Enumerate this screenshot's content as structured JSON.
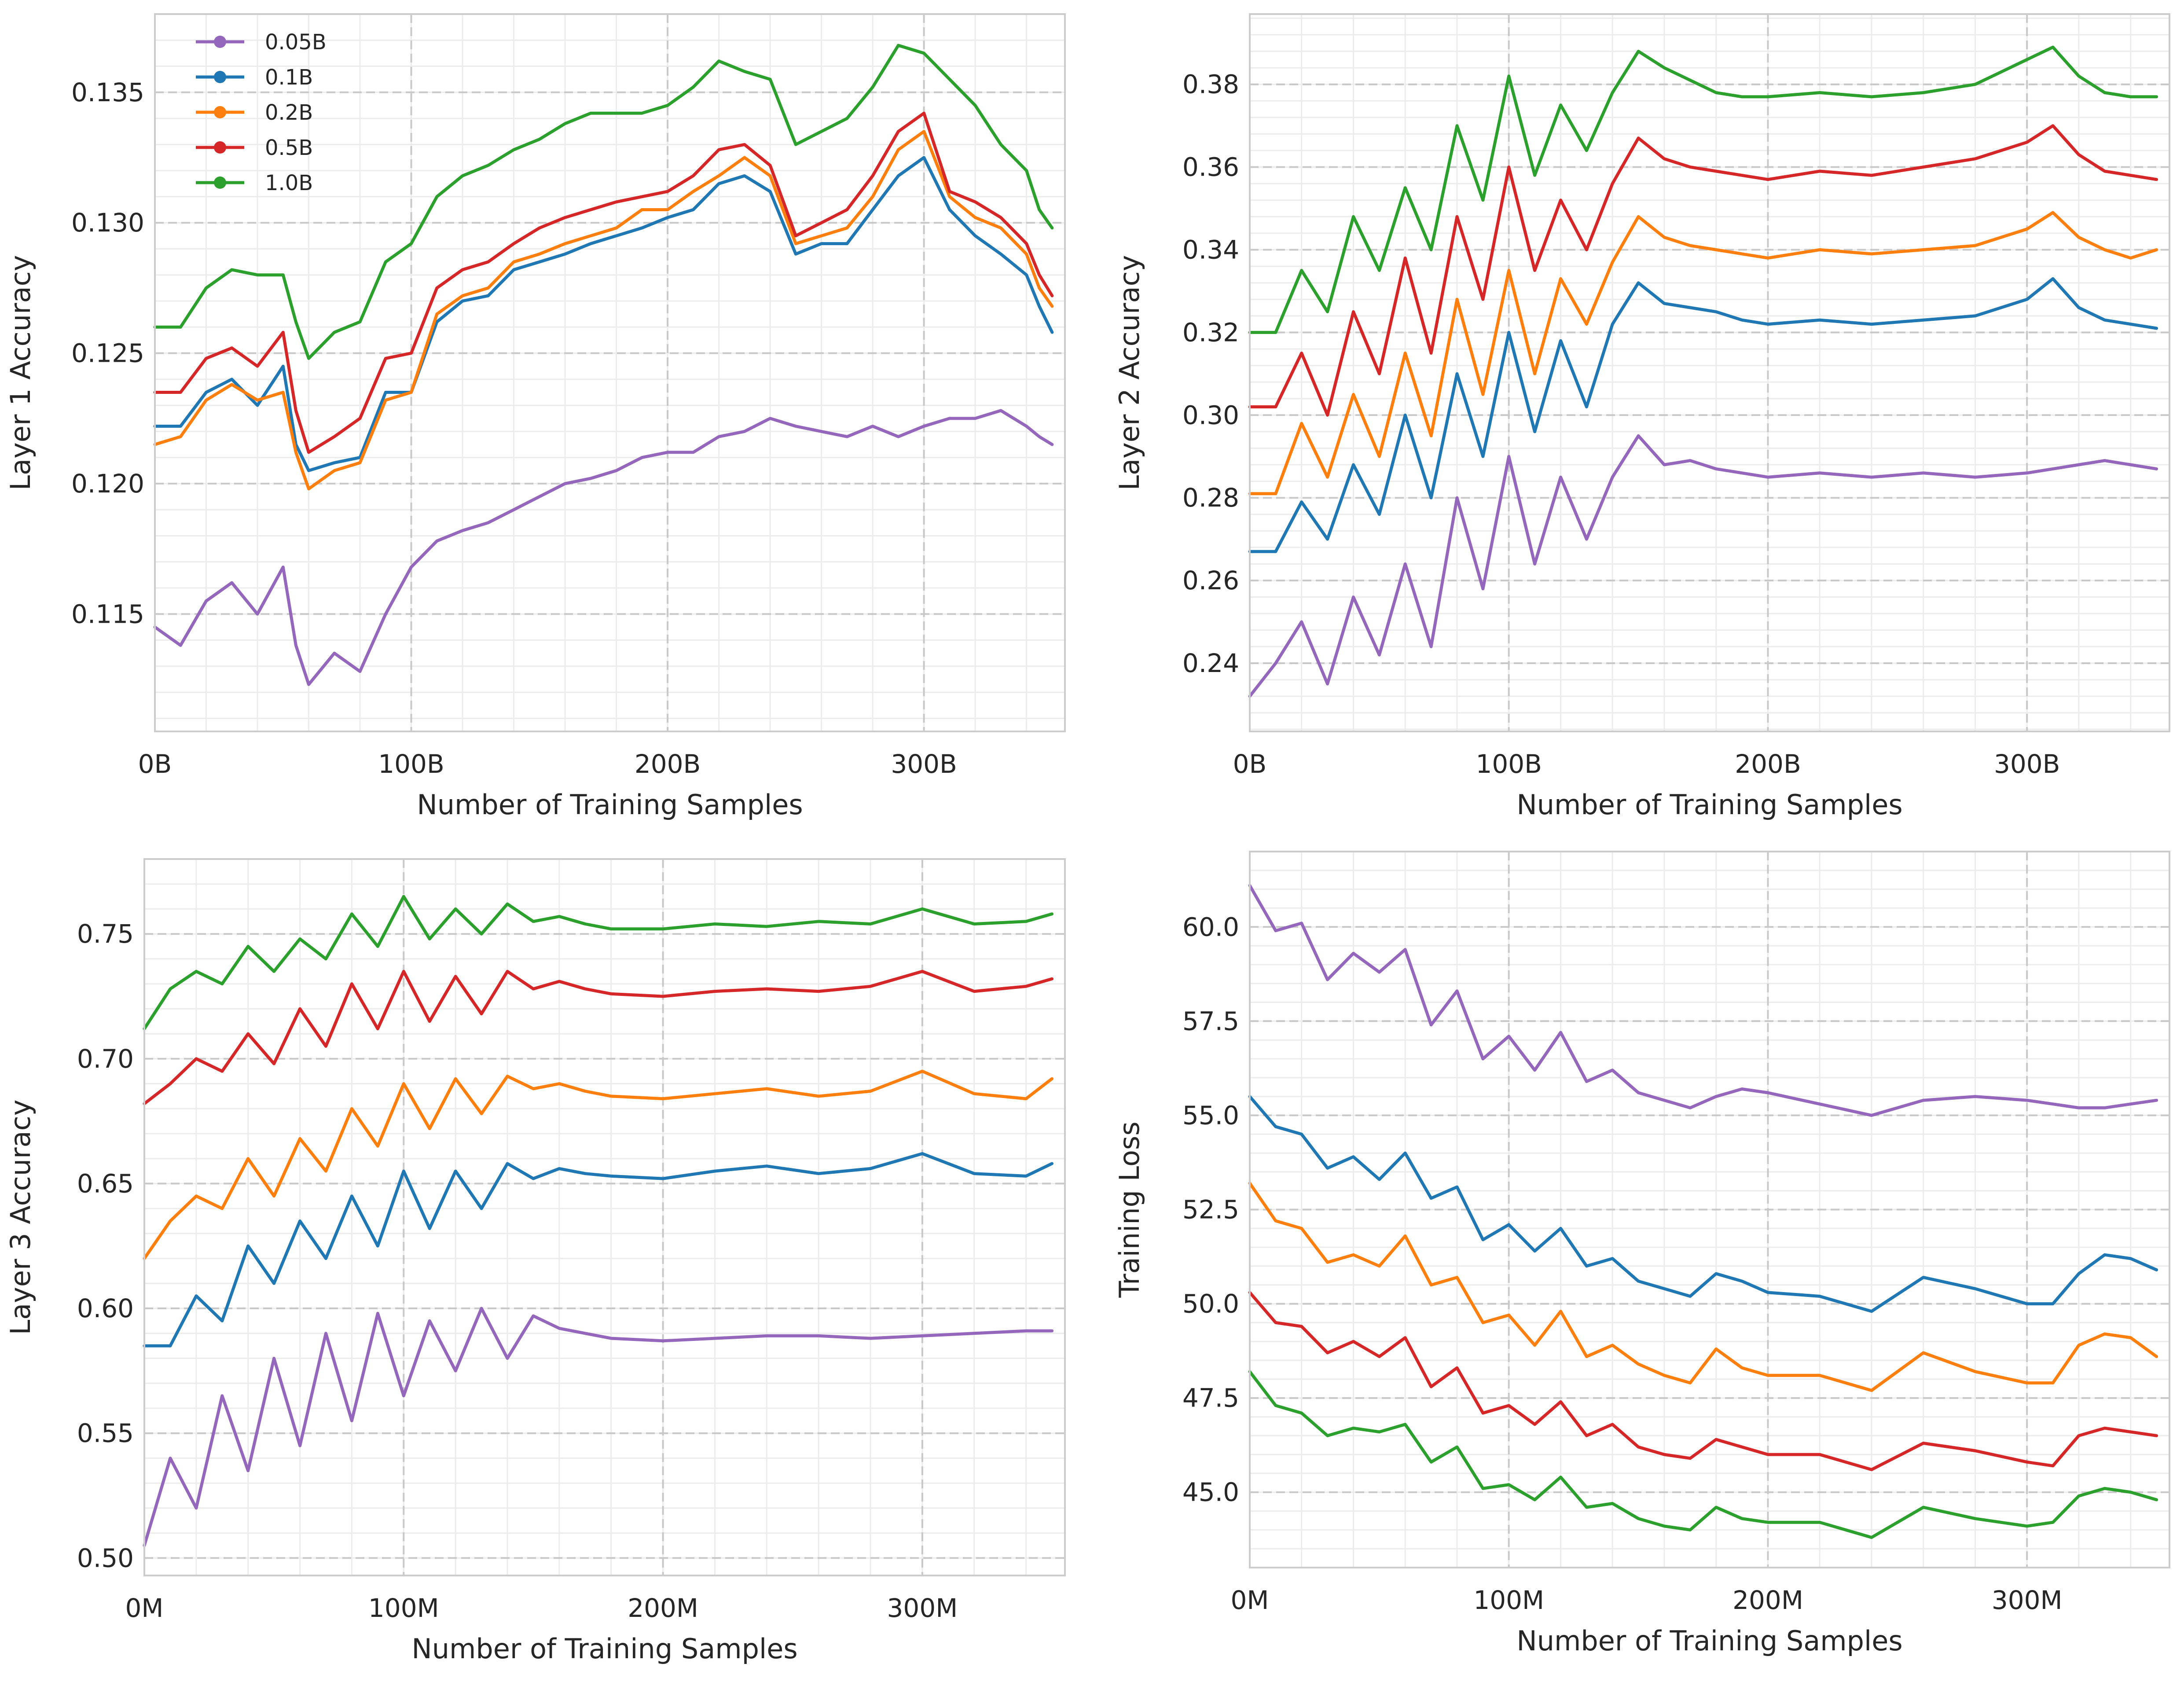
{
  "colors": {
    "0.05B": "#9467bd",
    "0.1B": "#1f77b4",
    "0.2B": "#ff7f0e",
    "0.5B": "#d62728",
    "1.0B": "#2ca02c",
    "grid_major": "#c8c8c8",
    "grid_minor": "#ececec",
    "spine": "#cccccc"
  },
  "legend": {
    "placement": "top-left",
    "entries": [
      "0.05B",
      "0.1B",
      "0.2B",
      "0.5B",
      "1.0B"
    ]
  },
  "chart_data": [
    {
      "type": "line",
      "title": "",
      "xlabel": "Number of Training Samples",
      "ylabel": "Layer 1 Accuracy",
      "xlim": [
        0,
        355
      ],
      "ylim": [
        0.1105,
        0.138
      ],
      "xticks": [
        0,
        100,
        200,
        300
      ],
      "xtick_labels": [
        "0B",
        "100B",
        "200B",
        "300B"
      ],
      "yticks": [
        0.115,
        0.12,
        0.125,
        0.13,
        0.135
      ],
      "ytick_labels": [
        "0.115",
        "0.120",
        "0.125",
        "0.130",
        "0.135"
      ],
      "grid": true,
      "legend": true,
      "x": [
        0,
        10,
        20,
        30,
        40,
        50,
        55,
        60,
        70,
        80,
        90,
        100,
        110,
        120,
        130,
        140,
        150,
        160,
        170,
        180,
        190,
        200,
        210,
        220,
        230,
        240,
        250,
        260,
        270,
        280,
        290,
        300,
        310,
        320,
        330,
        340,
        345,
        350
      ],
      "series": [
        {
          "name": "0.05B",
          "values": [
            0.1145,
            0.1138,
            0.1155,
            0.1162,
            0.115,
            0.1168,
            0.1138,
            0.1123,
            0.1135,
            0.1128,
            0.115,
            0.1168,
            0.1178,
            0.1182,
            0.1185,
            0.119,
            0.1195,
            0.12,
            0.1202,
            0.1205,
            0.121,
            0.1212,
            0.1212,
            0.1218,
            0.122,
            0.1225,
            0.1222,
            0.122,
            0.1218,
            0.1222,
            0.1218,
            0.1222,
            0.1225,
            0.1225,
            0.1228,
            0.1222,
            0.1218,
            0.1215
          ]
        },
        {
          "name": "0.1B",
          "values": [
            0.1222,
            0.1222,
            0.1235,
            0.124,
            0.123,
            0.1245,
            0.1215,
            0.1205,
            0.1208,
            0.121,
            0.1235,
            0.1235,
            0.1262,
            0.127,
            0.1272,
            0.1282,
            0.1285,
            0.1288,
            0.1292,
            0.1295,
            0.1298,
            0.1302,
            0.1305,
            0.1315,
            0.1318,
            0.1312,
            0.1288,
            0.1292,
            0.1292,
            0.1305,
            0.1318,
            0.1325,
            0.1305,
            0.1295,
            0.1288,
            0.128,
            0.1268,
            0.1258
          ]
        },
        {
          "name": "0.2B",
          "values": [
            0.1215,
            0.1218,
            0.1232,
            0.1238,
            0.1232,
            0.1235,
            0.1212,
            0.1198,
            0.1205,
            0.1208,
            0.1232,
            0.1235,
            0.1265,
            0.1272,
            0.1275,
            0.1285,
            0.1288,
            0.1292,
            0.1295,
            0.1298,
            0.1305,
            0.1305,
            0.1312,
            0.1318,
            0.1325,
            0.1318,
            0.1292,
            0.1295,
            0.1298,
            0.131,
            0.1328,
            0.1335,
            0.131,
            0.1302,
            0.1298,
            0.1288,
            0.1275,
            0.1268
          ]
        },
        {
          "name": "0.5B",
          "values": [
            0.1235,
            0.1235,
            0.1248,
            0.1252,
            0.1245,
            0.1258,
            0.1228,
            0.1212,
            0.1218,
            0.1225,
            0.1248,
            0.125,
            0.1275,
            0.1282,
            0.1285,
            0.1292,
            0.1298,
            0.1302,
            0.1305,
            0.1308,
            0.131,
            0.1312,
            0.1318,
            0.1328,
            0.133,
            0.1322,
            0.1295,
            0.13,
            0.1305,
            0.1318,
            0.1335,
            0.1342,
            0.1312,
            0.1308,
            0.1302,
            0.1292,
            0.128,
            0.1272
          ]
        },
        {
          "name": "1.0B",
          "values": [
            0.126,
            0.126,
            0.1275,
            0.1282,
            0.128,
            0.128,
            0.1262,
            0.1248,
            0.1258,
            0.1262,
            0.1285,
            0.1292,
            0.131,
            0.1318,
            0.1322,
            0.1328,
            0.1332,
            0.1338,
            0.1342,
            0.1342,
            0.1342,
            0.1345,
            0.1352,
            0.1362,
            0.1358,
            0.1355,
            0.133,
            0.1335,
            0.134,
            0.1352,
            0.1368,
            0.1365,
            0.1355,
            0.1345,
            0.133,
            0.132,
            0.1305,
            0.1298
          ]
        }
      ]
    },
    {
      "type": "line",
      "title": "",
      "xlabel": "Number of Training Samples",
      "ylabel": "Layer 2 Accuracy",
      "xlim": [
        0,
        355
      ],
      "ylim": [
        0.2235,
        0.397
      ],
      "xticks": [
        0,
        100,
        200,
        300
      ],
      "xtick_labels": [
        "0B",
        "100B",
        "200B",
        "300B"
      ],
      "yticks": [
        0.24,
        0.26,
        0.28,
        0.3,
        0.32,
        0.34,
        0.36,
        0.38
      ],
      "ytick_labels": [
        "0.24",
        "0.26",
        "0.28",
        "0.30",
        "0.32",
        "0.34",
        "0.36",
        "0.38"
      ],
      "grid": true,
      "legend": false,
      "x": [
        0,
        10,
        20,
        30,
        40,
        50,
        60,
        70,
        80,
        90,
        100,
        110,
        120,
        130,
        140,
        150,
        160,
        170,
        180,
        190,
        200,
        220,
        240,
        260,
        280,
        300,
        310,
        320,
        330,
        340,
        350
      ],
      "series": [
        {
          "name": "0.05B",
          "values": [
            0.232,
            0.24,
            0.25,
            0.235,
            0.256,
            0.242,
            0.264,
            0.244,
            0.28,
            0.258,
            0.29,
            0.264,
            0.285,
            0.27,
            0.285,
            0.295,
            0.288,
            0.289,
            0.287,
            0.286,
            0.285,
            0.286,
            0.285,
            0.286,
            0.285,
            0.286,
            0.287,
            0.288,
            0.289,
            0.288,
            0.287
          ]
        },
        {
          "name": "0.1B",
          "values": [
            0.267,
            0.267,
            0.279,
            0.27,
            0.288,
            0.276,
            0.3,
            0.28,
            0.31,
            0.29,
            0.32,
            0.296,
            0.318,
            0.302,
            0.322,
            0.332,
            0.327,
            0.326,
            0.325,
            0.323,
            0.322,
            0.323,
            0.322,
            0.323,
            0.324,
            0.328,
            0.333,
            0.326,
            0.323,
            0.322,
            0.321
          ]
        },
        {
          "name": "0.2B",
          "values": [
            0.281,
            0.281,
            0.298,
            0.285,
            0.305,
            0.29,
            0.315,
            0.295,
            0.328,
            0.305,
            0.335,
            0.31,
            0.333,
            0.322,
            0.337,
            0.348,
            0.343,
            0.341,
            0.34,
            0.339,
            0.338,
            0.34,
            0.339,
            0.34,
            0.341,
            0.345,
            0.349,
            0.343,
            0.34,
            0.338,
            0.34
          ]
        },
        {
          "name": "0.5B",
          "values": [
            0.302,
            0.302,
            0.315,
            0.3,
            0.325,
            0.31,
            0.338,
            0.315,
            0.348,
            0.328,
            0.36,
            0.335,
            0.352,
            0.34,
            0.356,
            0.367,
            0.362,
            0.36,
            0.359,
            0.358,
            0.357,
            0.359,
            0.358,
            0.36,
            0.362,
            0.366,
            0.37,
            0.363,
            0.359,
            0.358,
            0.357
          ]
        },
        {
          "name": "1.0B",
          "values": [
            0.32,
            0.32,
            0.335,
            0.325,
            0.348,
            0.335,
            0.355,
            0.34,
            0.37,
            0.352,
            0.382,
            0.358,
            0.375,
            0.364,
            0.378,
            0.388,
            0.384,
            0.381,
            0.378,
            0.377,
            0.377,
            0.378,
            0.377,
            0.378,
            0.38,
            0.386,
            0.389,
            0.382,
            0.378,
            0.377,
            0.377
          ]
        }
      ]
    },
    {
      "type": "line",
      "title": "",
      "xlabel": "Number of Training Samples",
      "ylabel": "Layer 3 Accuracy",
      "xlim": [
        0,
        355
      ],
      "ylim": [
        0.493,
        0.78
      ],
      "xticks": [
        0,
        100,
        200,
        300
      ],
      "xtick_labels": [
        "0M",
        "100M",
        "200M",
        "300M"
      ],
      "yticks": [
        0.5,
        0.55,
        0.6,
        0.65,
        0.7,
        0.75
      ],
      "ytick_labels": [
        "0.50",
        "0.55",
        "0.60",
        "0.65",
        "0.70",
        "0.75"
      ],
      "grid": true,
      "legend": false,
      "x": [
        0,
        10,
        20,
        30,
        40,
        50,
        60,
        70,
        80,
        90,
        100,
        110,
        120,
        130,
        140,
        150,
        160,
        170,
        180,
        200,
        220,
        240,
        260,
        280,
        300,
        320,
        340,
        350
      ],
      "series": [
        {
          "name": "0.05B",
          "values": [
            0.505,
            0.54,
            0.52,
            0.565,
            0.535,
            0.58,
            0.545,
            0.59,
            0.555,
            0.598,
            0.565,
            0.595,
            0.575,
            0.6,
            0.58,
            0.597,
            0.592,
            0.59,
            0.588,
            0.587,
            0.588,
            0.589,
            0.589,
            0.588,
            0.589,
            0.59,
            0.591,
            0.591
          ]
        },
        {
          "name": "0.1B",
          "values": [
            0.585,
            0.585,
            0.605,
            0.595,
            0.625,
            0.61,
            0.635,
            0.62,
            0.645,
            0.625,
            0.655,
            0.632,
            0.655,
            0.64,
            0.658,
            0.652,
            0.656,
            0.654,
            0.653,
            0.652,
            0.655,
            0.657,
            0.654,
            0.656,
            0.662,
            0.654,
            0.653,
            0.658
          ]
        },
        {
          "name": "0.2B",
          "values": [
            0.62,
            0.635,
            0.645,
            0.64,
            0.66,
            0.645,
            0.668,
            0.655,
            0.68,
            0.665,
            0.69,
            0.672,
            0.692,
            0.678,
            0.693,
            0.688,
            0.69,
            0.687,
            0.685,
            0.684,
            0.686,
            0.688,
            0.685,
            0.687,
            0.695,
            0.686,
            0.684,
            0.692
          ]
        },
        {
          "name": "0.5B",
          "values": [
            0.682,
            0.69,
            0.7,
            0.695,
            0.71,
            0.698,
            0.72,
            0.705,
            0.73,
            0.712,
            0.735,
            0.715,
            0.733,
            0.718,
            0.735,
            0.728,
            0.731,
            0.728,
            0.726,
            0.725,
            0.727,
            0.728,
            0.727,
            0.729,
            0.735,
            0.727,
            0.729,
            0.732
          ]
        },
        {
          "name": "1.0B",
          "values": [
            0.712,
            0.728,
            0.735,
            0.73,
            0.745,
            0.735,
            0.748,
            0.74,
            0.758,
            0.745,
            0.765,
            0.748,
            0.76,
            0.75,
            0.762,
            0.755,
            0.757,
            0.754,
            0.752,
            0.752,
            0.754,
            0.753,
            0.755,
            0.754,
            0.76,
            0.754,
            0.755,
            0.758
          ]
        }
      ]
    },
    {
      "type": "line",
      "title": "",
      "xlabel": "Number of Training Samples",
      "ylabel": "Training Loss",
      "xlim": [
        0,
        355
      ],
      "ylim": [
        43,
        62
      ],
      "xticks": [
        0,
        100,
        200,
        300
      ],
      "xtick_labels": [
        "0M",
        "100M",
        "200M",
        "300M"
      ],
      "yticks": [
        45,
        47.5,
        50,
        52.5,
        55,
        57.5,
        60
      ],
      "ytick_labels": [
        "45.0",
        "47.5",
        "50.0",
        "52.5",
        "55.0",
        "57.5",
        "60.0"
      ],
      "grid": true,
      "legend": false,
      "x": [
        0,
        10,
        20,
        30,
        40,
        50,
        60,
        70,
        80,
        90,
        100,
        110,
        120,
        130,
        140,
        150,
        160,
        170,
        180,
        190,
        200,
        220,
        240,
        260,
        280,
        300,
        310,
        320,
        330,
        340,
        350
      ],
      "series": [
        {
          "name": "0.05B",
          "values": [
            61.1,
            59.9,
            60.1,
            58.6,
            59.3,
            58.8,
            59.4,
            57.4,
            58.3,
            56.5,
            57.1,
            56.2,
            57.2,
            55.9,
            56.2,
            55.6,
            55.4,
            55.2,
            55.5,
            55.7,
            55.6,
            55.3,
            55.0,
            55.4,
            55.5,
            55.4,
            55.3,
            55.2,
            55.2,
            55.3,
            55.4
          ]
        },
        {
          "name": "0.1B",
          "values": [
            55.5,
            54.7,
            54.5,
            53.6,
            53.9,
            53.3,
            54.0,
            52.8,
            53.1,
            51.7,
            52.1,
            51.4,
            52.0,
            51.0,
            51.2,
            50.6,
            50.4,
            50.2,
            50.8,
            50.6,
            50.3,
            50.2,
            49.8,
            50.7,
            50.4,
            50.0,
            50.0,
            50.8,
            51.3,
            51.2,
            50.9
          ]
        },
        {
          "name": "0.2B",
          "values": [
            53.2,
            52.2,
            52.0,
            51.1,
            51.3,
            51.0,
            51.8,
            50.5,
            50.7,
            49.5,
            49.7,
            48.9,
            49.8,
            48.6,
            48.9,
            48.4,
            48.1,
            47.9,
            48.8,
            48.3,
            48.1,
            48.1,
            47.7,
            48.7,
            48.2,
            47.9,
            47.9,
            48.9,
            49.2,
            49.1,
            48.6
          ]
        },
        {
          "name": "0.5B",
          "values": [
            50.3,
            49.5,
            49.4,
            48.7,
            49.0,
            48.6,
            49.1,
            47.8,
            48.3,
            47.1,
            47.3,
            46.8,
            47.4,
            46.5,
            46.8,
            46.2,
            46.0,
            45.9,
            46.4,
            46.2,
            46.0,
            46.0,
            45.6,
            46.3,
            46.1,
            45.8,
            45.7,
            46.5,
            46.7,
            46.6,
            46.5
          ]
        },
        {
          "name": "1.0B",
          "values": [
            48.2,
            47.3,
            47.1,
            46.5,
            46.7,
            46.6,
            46.8,
            45.8,
            46.2,
            45.1,
            45.2,
            44.8,
            45.4,
            44.6,
            44.7,
            44.3,
            44.1,
            44.0,
            44.6,
            44.3,
            44.2,
            44.2,
            43.8,
            44.6,
            44.3,
            44.1,
            44.2,
            44.9,
            45.1,
            45.0,
            44.8
          ]
        }
      ]
    }
  ]
}
